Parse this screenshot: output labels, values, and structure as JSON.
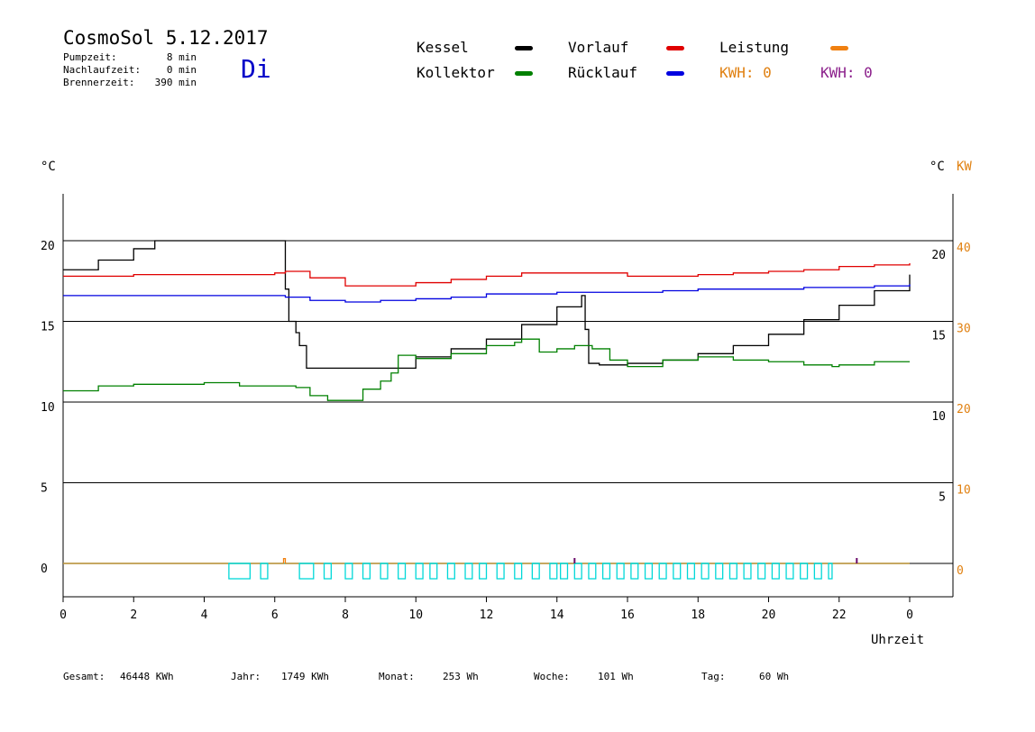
{
  "header": {
    "title": "CosmoSol 5.12.2017",
    "stats": [
      {
        "label": "Pumpzeit:",
        "value": "8 min"
      },
      {
        "label": "Nachlaufzeit:",
        "value": "0 min"
      },
      {
        "label": "Brennerzeit:",
        "value": "390 min"
      }
    ],
    "day": "Di"
  },
  "legend": {
    "items": [
      {
        "label": "Kessel",
        "color": "#000000"
      },
      {
        "label": "Vorlauf",
        "color": "#e00000"
      },
      {
        "label": "Leistung",
        "color": "#f08010"
      },
      {
        "label": "Kollektor",
        "color": "#008000"
      },
      {
        "label": "Rücklauf",
        "color": "#0000e0"
      }
    ],
    "kwh": [
      {
        "label": "KWH: 0",
        "color": "#e08010"
      },
      {
        "label": "KWH: 0",
        "color": "#8b1f8b"
      }
    ]
  },
  "axes": {
    "left_unit": "°C",
    "right_unit_c": "°C",
    "right_unit_kw": "KW",
    "x_label": "Uhrzeit"
  },
  "footer": [
    {
      "label": "Gesamt:",
      "value": "46448 KWh"
    },
    {
      "label": "Jahr:",
      "value": "1749 KWh"
    },
    {
      "label": "Monat:",
      "value": "253 Wh"
    },
    {
      "label": "Woche:",
      "value": "101 Wh"
    },
    {
      "label": "Tag:",
      "value": "60 Wh"
    }
  ],
  "chart_data": {
    "type": "line",
    "xlabel": "Uhrzeit",
    "x_ticks": [
      "0",
      "2",
      "4",
      "6",
      "8",
      "10",
      "12",
      "14",
      "16",
      "18",
      "20",
      "22",
      "0"
    ],
    "xlim": [
      0,
      24
    ],
    "ylim": [
      -2,
      23
    ],
    "y_left_ticks": [
      0,
      5,
      10,
      15,
      20
    ],
    "y_right_ticks_c": [
      5,
      10,
      15,
      20
    ],
    "y_right_ticks_kw": [
      0,
      10,
      20,
      30,
      40
    ],
    "grid_lines_y": [
      5,
      10,
      15,
      20
    ],
    "series": [
      {
        "name": "Kessel",
        "color": "#000000",
        "x": [
          0,
          1,
          2,
          2.6,
          6.2,
          6.25,
          6.3,
          6.4,
          6.6,
          6.7,
          6.9,
          7.5,
          9,
          10,
          11,
          12,
          13,
          14,
          14.7,
          14.8,
          14.9,
          15.2,
          16,
          17,
          18,
          19,
          20,
          21,
          22,
          23,
          24
        ],
        "y": [
          18.2,
          18.8,
          19.5,
          20,
          20,
          20,
          17,
          15,
          14.3,
          13.5,
          12.1,
          12.1,
          12.1,
          12.8,
          13.3,
          13.9,
          14.8,
          15.9,
          16.6,
          14.5,
          12.4,
          12.3,
          12.4,
          12.6,
          13.0,
          13.5,
          14.2,
          15.1,
          16.0,
          16.9,
          17.9
        ]
      },
      {
        "name": "Vorlauf",
        "color": "#e00000",
        "x": [
          0,
          2,
          4,
          6,
          6.3,
          7,
          8,
          9,
          10,
          11,
          12,
          13,
          14,
          15,
          16,
          17,
          18,
          19,
          20,
          21,
          22,
          23,
          24
        ],
        "y": [
          17.8,
          17.9,
          17.9,
          18.0,
          18.1,
          17.7,
          17.2,
          17.2,
          17.4,
          17.6,
          17.8,
          18.0,
          18.0,
          18.0,
          17.8,
          17.8,
          17.9,
          18.0,
          18.1,
          18.2,
          18.4,
          18.5,
          18.6
        ]
      },
      {
        "name": "Rücklauf",
        "color": "#0000e0",
        "x": [
          0,
          2,
          4,
          6,
          6.3,
          7,
          8,
          9,
          10,
          11,
          12,
          13,
          14,
          15,
          16,
          17,
          18,
          19,
          20,
          21,
          22,
          23,
          24
        ],
        "y": [
          16.6,
          16.6,
          16.6,
          16.6,
          16.5,
          16.3,
          16.2,
          16.3,
          16.4,
          16.5,
          16.7,
          16.7,
          16.8,
          16.8,
          16.8,
          16.9,
          17.0,
          17.0,
          17.0,
          17.1,
          17.1,
          17.2,
          17.3
        ]
      },
      {
        "name": "Kollektor",
        "color": "#008000",
        "x": [
          0,
          1,
          2,
          3,
          4,
          5,
          6,
          6.6,
          7,
          7.5,
          8,
          8.5,
          9,
          9.3,
          9.5,
          10,
          11,
          12,
          12.8,
          13,
          13.5,
          14,
          14.5,
          15,
          15.5,
          16,
          17,
          18,
          19,
          20,
          21,
          21.8,
          22,
          23,
          24
        ],
        "y": [
          10.7,
          11.0,
          11.1,
          11.1,
          11.2,
          11.0,
          11.0,
          10.9,
          10.4,
          10.1,
          10.1,
          10.8,
          11.3,
          11.8,
          12.9,
          12.7,
          13.0,
          13.5,
          13.7,
          13.9,
          13.1,
          13.3,
          13.5,
          13.3,
          12.6,
          12.2,
          12.6,
          12.8,
          12.6,
          12.5,
          12.3,
          12.2,
          12.3,
          12.5,
          12.5
        ]
      },
      {
        "name": "Leistung",
        "color": "#f08010",
        "x": [
          0,
          6.2,
          6.25,
          6.3,
          24
        ],
        "y": [
          0,
          0,
          0.3,
          0,
          0
        ]
      }
    ]
  }
}
